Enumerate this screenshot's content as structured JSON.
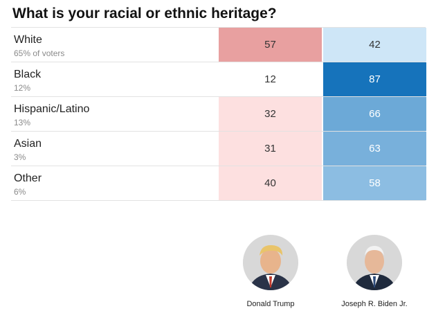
{
  "chart_data": {
    "type": "table",
    "title": "What is your racial or ethnic heritage?",
    "columns": [
      "Donald Trump",
      "Joseph R. Biden Jr."
    ],
    "rows": [
      {
        "group": "White",
        "share": "65% of voters",
        "trump": 57,
        "biden": 42
      },
      {
        "group": "Black",
        "share": "12%",
        "trump": 12,
        "biden": 87
      },
      {
        "group": "Hispanic/Latino",
        "share": "13%",
        "trump": 32,
        "biden": 66
      },
      {
        "group": "Asian",
        "share": "3%",
        "trump": 31,
        "biden": 63
      },
      {
        "group": "Other",
        "share": "6%",
        "trump": 40,
        "biden": 58
      }
    ],
    "colors": {
      "trump_low": "#fde0e0",
      "trump_high": "#e8a0a0",
      "biden_low": "#d6ebfa",
      "biden_high": "#1673bb"
    }
  },
  "candidates": [
    {
      "name": "Donald Trump"
    },
    {
      "name": "Joseph R. Biden Jr."
    }
  ]
}
